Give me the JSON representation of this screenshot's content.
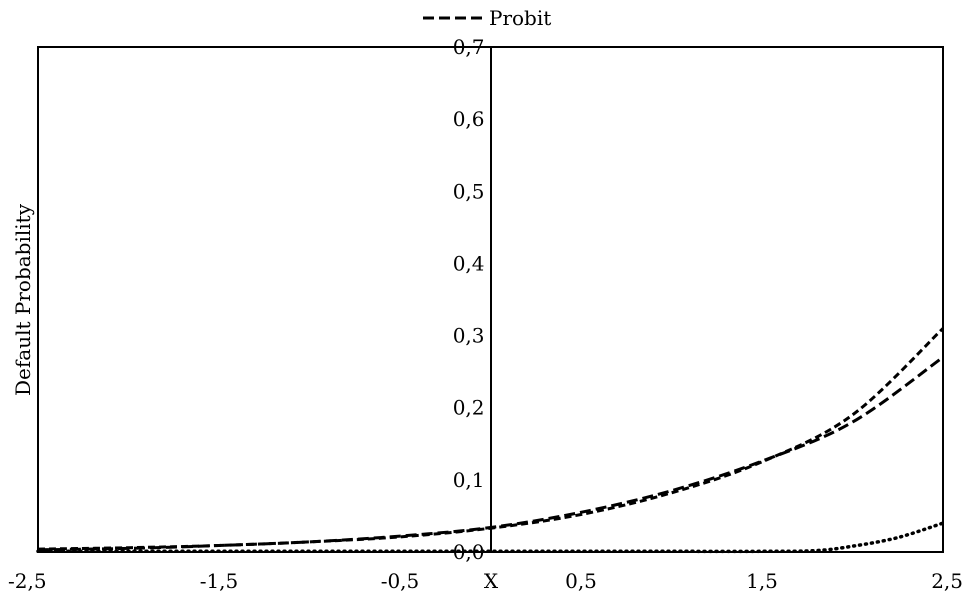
{
  "chart_data": {
    "type": "line",
    "xlabel": "X",
    "ylabel": "Default Probability",
    "xlim": [
      -2.5,
      2.5
    ],
    "ylim": [
      0.0,
      0.7
    ],
    "x_ticks": [
      "-2,5",
      "-1,5",
      "-0,5",
      "0,5",
      "1,5",
      "2,5"
    ],
    "x_tick_values": [
      -2.5,
      -1.5,
      -0.5,
      0.5,
      1.5,
      2.5
    ],
    "y_ticks": [
      "0,0",
      "0,1",
      "0,2",
      "0,3",
      "0,4",
      "0,5",
      "0,6",
      "0,7"
    ],
    "y_tick_values": [
      0.0,
      0.1,
      0.2,
      0.3,
      0.4,
      0.5,
      0.6,
      0.7
    ],
    "grid": false,
    "legend_position": "top-center",
    "legend": [
      {
        "label": "Probit",
        "style": "long-dash",
        "color": "#000000"
      }
    ],
    "series": [
      {
        "name": "Probit",
        "style": "long-dash",
        "color": "#000000",
        "x": [
          -2.5,
          -2.0,
          -1.5,
          -1.0,
          -0.5,
          0.0,
          0.5,
          1.0,
          1.5,
          2.0,
          2.5
        ],
        "y": [
          0.003,
          0.005,
          0.009,
          0.014,
          0.022,
          0.034,
          0.055,
          0.085,
          0.126,
          0.18,
          0.27
        ]
      },
      {
        "style": "short-dash",
        "color": "#000000",
        "x": [
          -2.5,
          -2.0,
          -1.5,
          -1.0,
          -0.5,
          0.0,
          0.5,
          1.0,
          1.5,
          2.0,
          2.5
        ],
        "y": [
          0.004,
          0.006,
          0.009,
          0.014,
          0.021,
          0.033,
          0.052,
          0.082,
          0.125,
          0.19,
          0.31
        ]
      },
      {
        "style": "dotted",
        "color": "#000000",
        "x": [
          -2.5,
          -2.0,
          -1.5,
          -1.0,
          -0.5,
          0.0,
          0.5,
          1.0,
          1.5,
          1.8,
          2.0,
          2.25,
          2.5
        ],
        "y": [
          0.001,
          0.001,
          0.001,
          0.001,
          0.001,
          0.001,
          0.001,
          0.001,
          0.001,
          0.002,
          0.008,
          0.02,
          0.04
        ]
      }
    ]
  }
}
